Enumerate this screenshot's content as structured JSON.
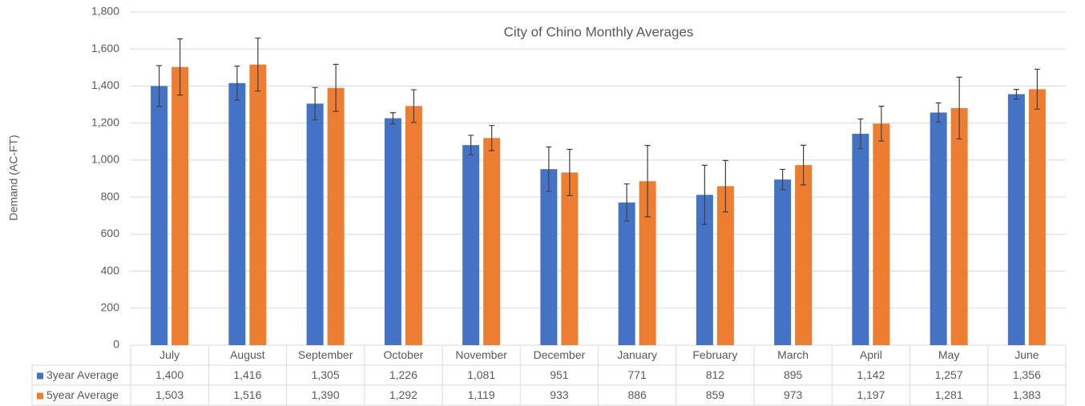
{
  "chart_data": {
    "type": "bar",
    "title": "City of Chino  Monthly Averages",
    "y_label": "Demand (AC-FT)",
    "categories": [
      "July",
      "August",
      "September",
      "October",
      "November",
      "December",
      "January",
      "February",
      "March",
      "April",
      "May",
      "June"
    ],
    "series": [
      {
        "name": "3year Average",
        "color": "#4472c4",
        "values": [
          1400,
          1416,
          1305,
          1226,
          1081,
          951,
          771,
          812,
          895,
          1142,
          1257,
          1356
        ],
        "value_labels": [
          "1,400",
          "1,416",
          "1,305",
          "1,226",
          "1,081",
          "951",
          "771",
          "812",
          "895",
          "1,142",
          "1,257",
          "1,356"
        ],
        "errors": [
          110,
          92,
          87,
          30,
          53,
          120,
          100,
          160,
          55,
          80,
          52,
          26
        ]
      },
      {
        "name": "5year Average",
        "color": "#ed7d31",
        "values": [
          1503,
          1516,
          1390,
          1292,
          1119,
          933,
          886,
          859,
          973,
          1197,
          1281,
          1383
        ],
        "value_labels": [
          "1,503",
          "1,516",
          "1,390",
          "1,292",
          "1,119",
          "933",
          "886",
          "859",
          "973",
          "1,197",
          "1,281",
          "1,383"
        ],
        "errors": [
          152,
          143,
          127,
          88,
          68,
          125,
          193,
          139,
          107,
          94,
          167,
          108
        ]
      }
    ],
    "ylim": [
      0,
      1800
    ],
    "yticks": [
      0,
      200,
      400,
      600,
      800,
      {
        "value": 1000,
        "label": "1,000"
      },
      {
        "value": 1200,
        "label": "1,200"
      },
      {
        "value": 1400,
        "label": "1,400"
      },
      {
        "value": 1600,
        "label": "1,600"
      },
      {
        "value": 1800,
        "label": "1,800"
      }
    ],
    "grid": true
  }
}
